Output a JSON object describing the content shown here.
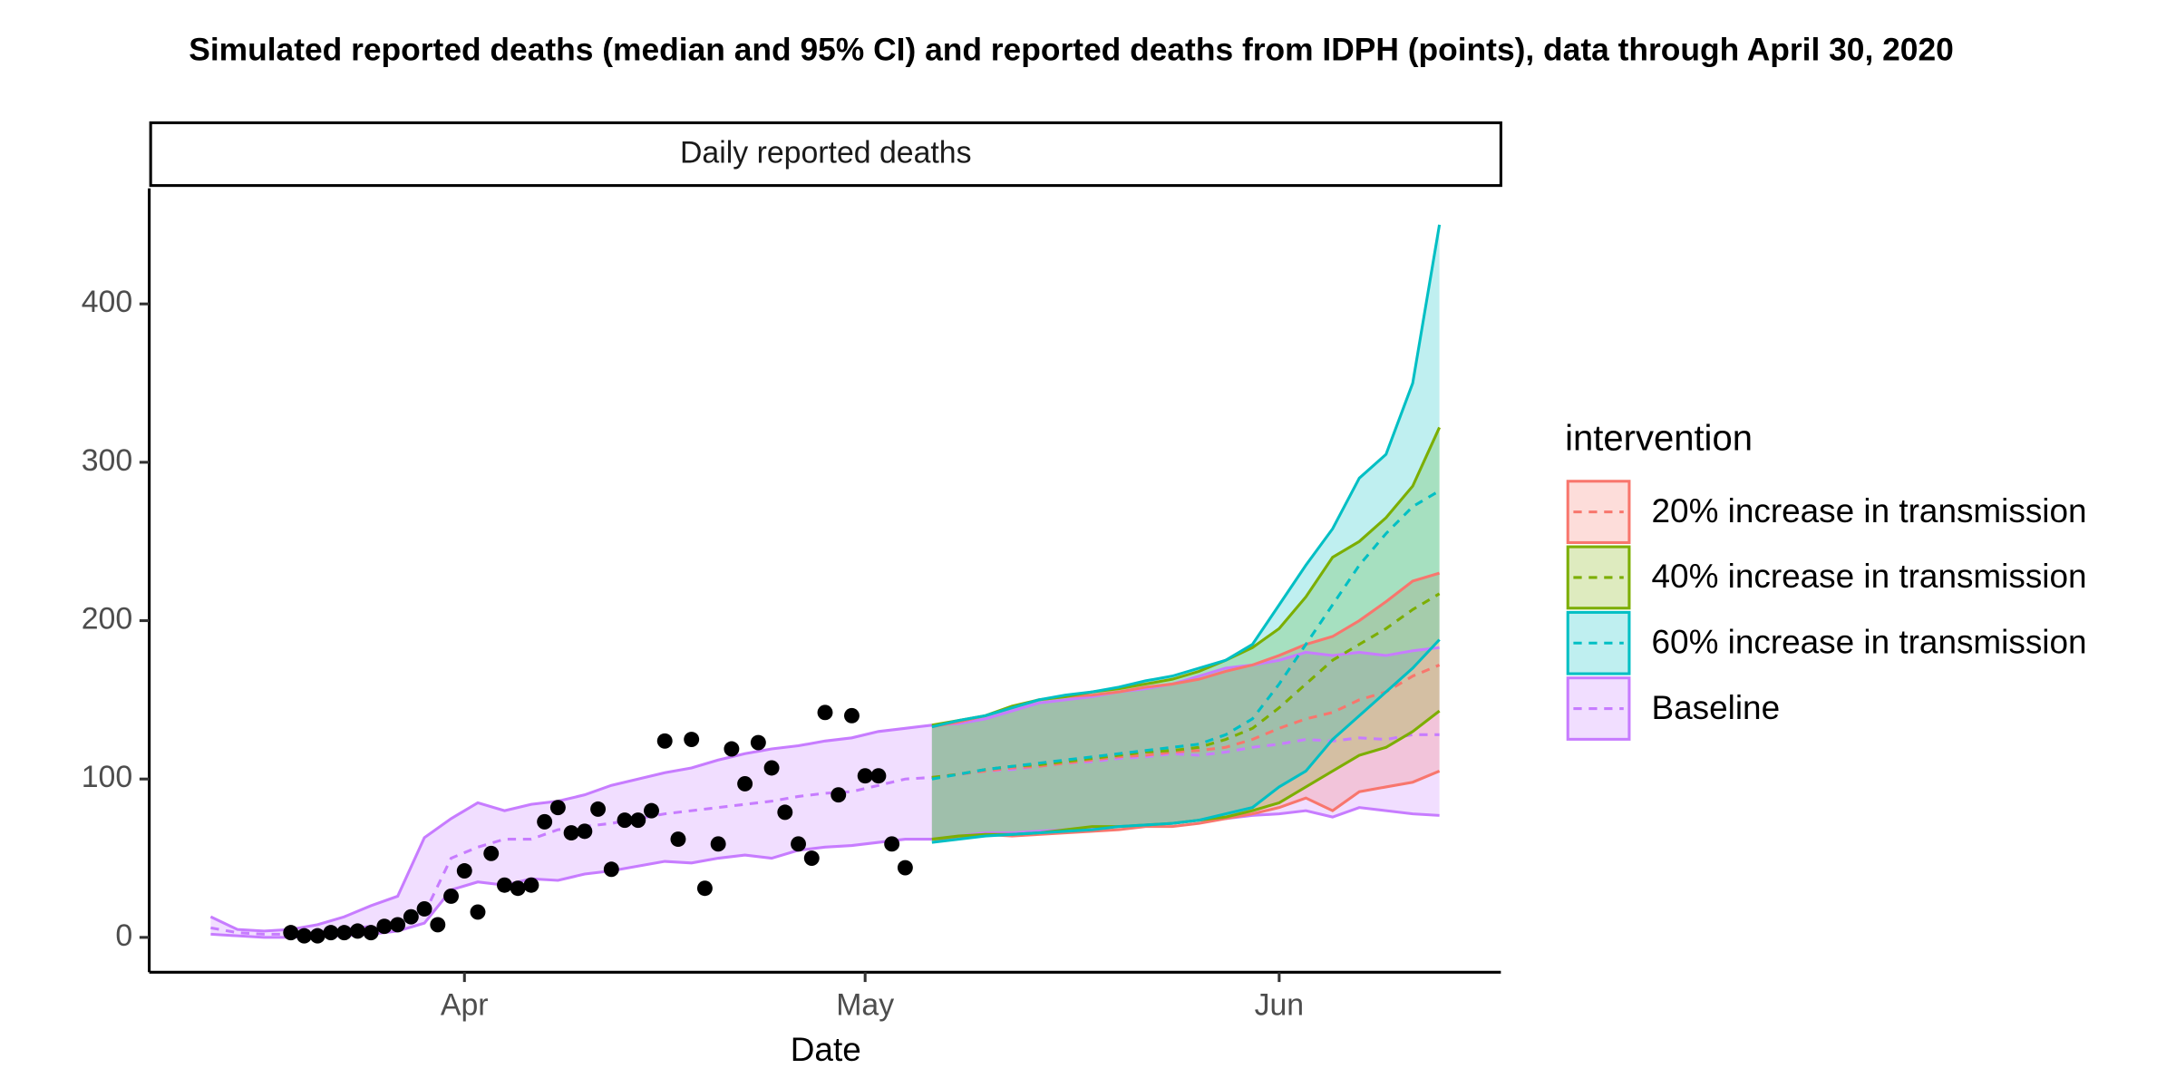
{
  "chart_data": {
    "type": "ribbon",
    "title": "Simulated reported deaths (median and 95% CI) and reported deaths from IDPH (points), data through April 30, 2020",
    "panel_title": "Daily reported deaths",
    "x_label": "Date",
    "legend_title": "intervention",
    "xlim": [
      -23.6,
      77.6
    ],
    "xticks": [
      {
        "value": 0,
        "label": "Apr"
      },
      {
        "value": 30,
        "label": "May"
      },
      {
        "value": 61,
        "label": "Jun"
      }
    ],
    "ylim": [
      -22,
      473
    ],
    "yticks": [
      0,
      100,
      200,
      300,
      400
    ],
    "grid": false,
    "series": [
      {
        "name": "Baseline",
        "color": "#C77CFF",
        "x": [
          -19,
          -17,
          -15,
          -13,
          -11,
          -9,
          -7,
          -5,
          -3,
          -1,
          1,
          3,
          5,
          7,
          9,
          11,
          13,
          15,
          17,
          19,
          21,
          23,
          25,
          27,
          29,
          31,
          33,
          35,
          37,
          39,
          41,
          43,
          45,
          47,
          49,
          51,
          53,
          55,
          57,
          59,
          61,
          63,
          65,
          67,
          69,
          71,
          73
        ],
        "upper": [
          13,
          5,
          4,
          5,
          8,
          13,
          20,
          26,
          63,
          75,
          85,
          80,
          84,
          86,
          90,
          96,
          100,
          104,
          107,
          112,
          116,
          119,
          121,
          124,
          126,
          130,
          132,
          134,
          135,
          138,
          143,
          148,
          150,
          152,
          155,
          157,
          160,
          165,
          170,
          172,
          175,
          180,
          178,
          180,
          178,
          181,
          183
        ],
        "median": [
          6,
          3,
          2,
          2,
          3,
          5,
          7,
          10,
          15,
          50,
          57,
          62,
          62,
          68,
          70,
          72,
          75,
          78,
          80,
          82,
          84,
          86,
          89,
          91,
          92,
          96,
          100,
          101,
          103,
          105,
          106,
          108,
          110,
          111,
          113,
          114,
          116,
          115,
          117,
          120,
          122,
          125,
          124,
          126,
          125,
          128,
          128
        ],
        "lower": [
          2,
          1,
          0,
          0,
          1,
          1,
          2,
          4,
          9,
          30,
          35,
          33,
          37,
          36,
          40,
          42,
          45,
          48,
          47,
          50,
          52,
          50,
          55,
          57,
          58,
          60,
          62,
          62,
          64,
          66,
          66,
          67,
          68,
          69,
          70,
          71,
          72,
          74,
          75,
          77,
          78,
          80,
          76,
          82,
          80,
          78,
          77
        ]
      },
      {
        "name": "20% increase in transmission",
        "color": "#F8766D",
        "x": [
          35,
          37,
          39,
          41,
          43,
          45,
          47,
          49,
          51,
          53,
          55,
          57,
          59,
          61,
          63,
          65,
          67,
          69,
          71,
          73
        ],
        "upper": [
          133,
          136,
          140,
          145,
          150,
          152,
          153,
          155,
          158,
          160,
          163,
          168,
          172,
          178,
          185,
          190,
          200,
          212,
          225,
          230
        ],
        "median": [
          101,
          103,
          105,
          107,
          108,
          110,
          112,
          114,
          115,
          117,
          118,
          120,
          125,
          132,
          138,
          142,
          150,
          155,
          165,
          172
        ],
        "lower": [
          62,
          63,
          65,
          64,
          65,
          66,
          67,
          68,
          70,
          70,
          72,
          75,
          78,
          82,
          88,
          80,
          92,
          95,
          98,
          105
        ]
      },
      {
        "name": "40% increase in transmission",
        "color": "#7CAE00",
        "x": [
          35,
          37,
          39,
          41,
          43,
          45,
          47,
          49,
          51,
          53,
          55,
          57,
          59,
          61,
          63,
          65,
          67,
          69,
          71,
          73
        ],
        "upper": [
          134,
          137,
          140,
          146,
          150,
          152,
          155,
          157,
          160,
          163,
          168,
          175,
          183,
          195,
          215,
          240,
          250,
          265,
          285,
          322
        ],
        "median": [
          101,
          103,
          106,
          108,
          109,
          111,
          113,
          115,
          117,
          118,
          120,
          125,
          132,
          145,
          160,
          175,
          185,
          195,
          207,
          217
        ],
        "lower": [
          62,
          64,
          65,
          65,
          66,
          68,
          70,
          70,
          71,
          72,
          74,
          76,
          80,
          85,
          95,
          105,
          115,
          120,
          130,
          143
        ]
      },
      {
        "name": "60% increase in transmission",
        "color": "#00BFC4",
        "x": [
          35,
          37,
          39,
          41,
          43,
          45,
          47,
          49,
          51,
          53,
          55,
          57,
          59,
          61,
          63,
          65,
          67,
          69,
          71,
          73
        ],
        "upper": [
          133,
          137,
          140,
          145,
          150,
          153,
          155,
          158,
          162,
          165,
          170,
          175,
          185,
          210,
          235,
          258,
          290,
          305,
          350,
          450
        ],
        "median": [
          100,
          103,
          106,
          108,
          110,
          112,
          114,
          116,
          118,
          120,
          122,
          128,
          138,
          160,
          185,
          210,
          235,
          255,
          272,
          282
        ],
        "lower": [
          60,
          62,
          64,
          65,
          66,
          67,
          68,
          70,
          71,
          72,
          74,
          78,
          82,
          95,
          105,
          125,
          140,
          155,
          170,
          188
        ]
      }
    ],
    "legend_order": [
      1,
      2,
      3,
      0
    ],
    "points": {
      "color": "#000000",
      "x": [
        -13,
        -12,
        -11,
        -10,
        -9,
        -8,
        -7,
        -6,
        -5,
        -4,
        -3,
        -2,
        -1,
        0,
        1,
        2,
        3,
        4,
        5,
        6,
        7,
        8,
        9,
        10,
        11,
        12,
        13,
        14,
        15,
        16,
        17,
        18,
        19,
        20,
        21,
        22,
        23,
        24,
        25,
        26,
        27,
        28,
        29,
        30,
        31,
        32,
        33
      ],
      "values": [
        3,
        1,
        1,
        3,
        3,
        4,
        3,
        7,
        8,
        13,
        18,
        8,
        26,
        42,
        16,
        53,
        33,
        31,
        33,
        73,
        82,
        66,
        67,
        81,
        43,
        74,
        74,
        80,
        124,
        62,
        125,
        31,
        59,
        119,
        97,
        123,
        107,
        79,
        59,
        50,
        142,
        90,
        140,
        102,
        102,
        59,
        44
      ]
    }
  }
}
